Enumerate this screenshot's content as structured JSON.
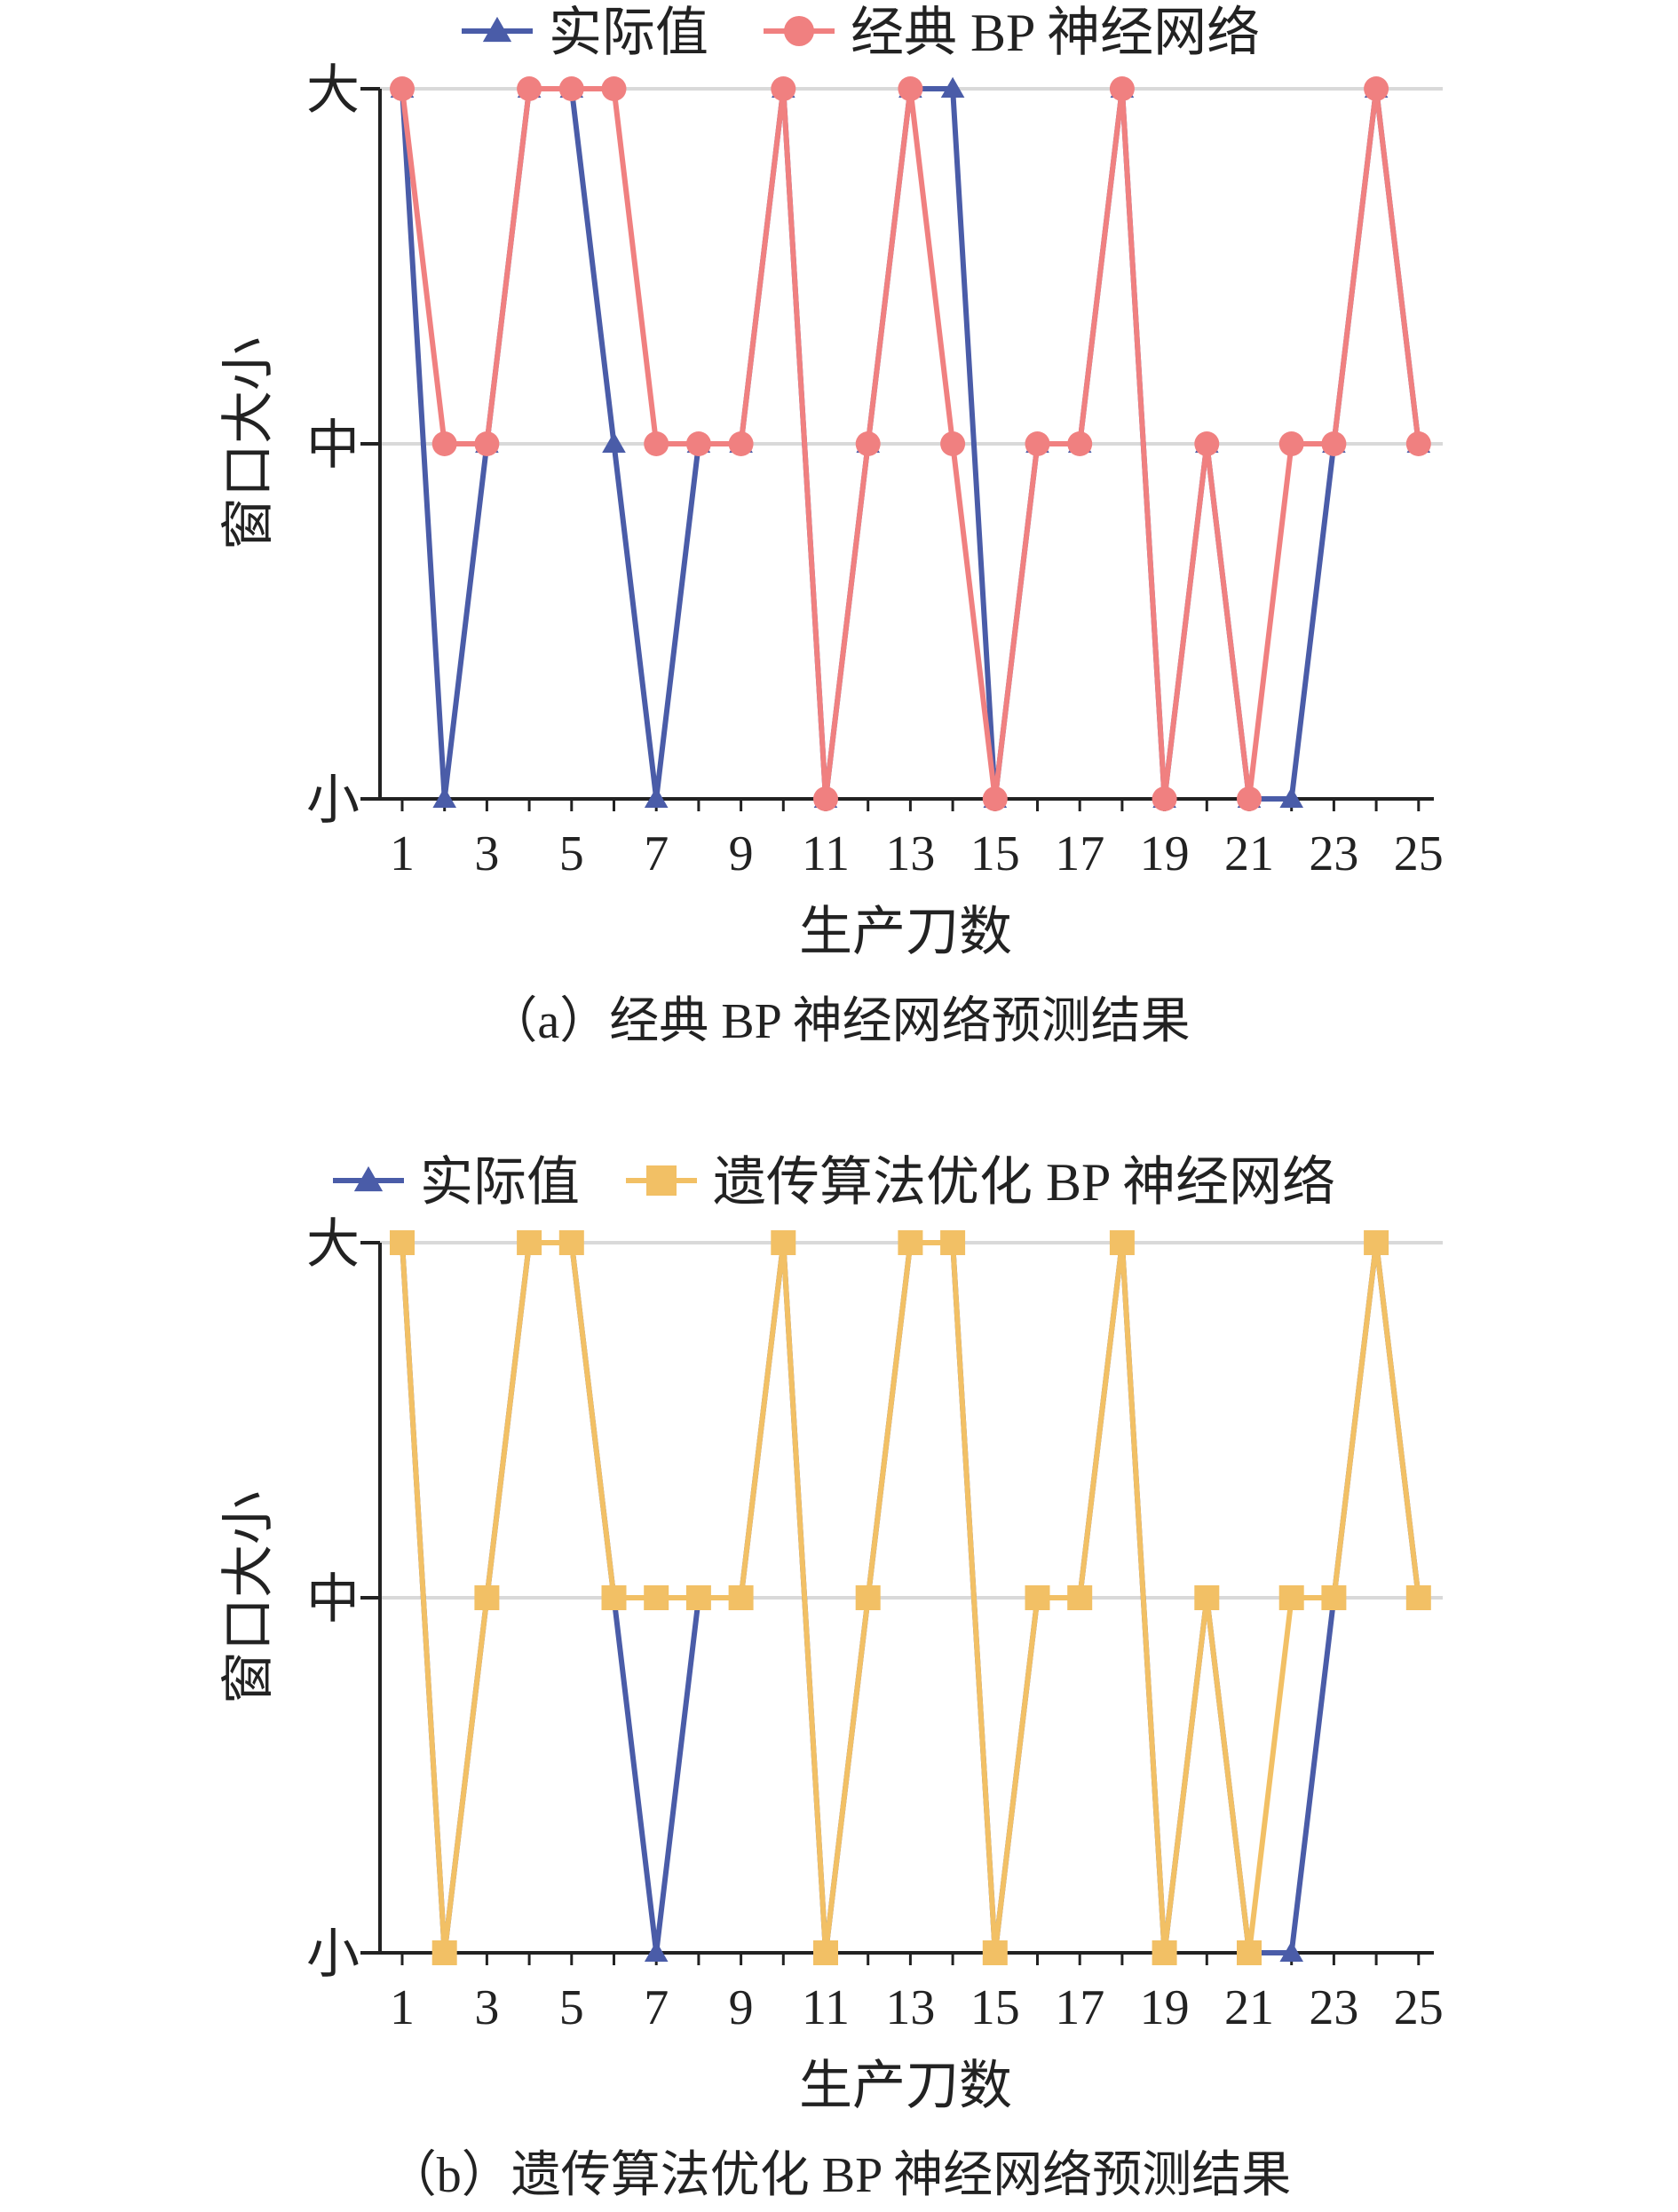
{
  "chart_data": [
    {
      "type": "line",
      "caption": "（a）经典 BP 神经网络预测结果",
      "xlabel": "生产刀数",
      "ylabel": "窗口大小",
      "y_categories": [
        "小",
        "中",
        "大"
      ],
      "x": [
        1,
        2,
        3,
        4,
        5,
        6,
        7,
        8,
        9,
        10,
        11,
        12,
        13,
        14,
        15,
        16,
        17,
        18,
        19,
        20,
        21,
        22,
        23,
        24,
        25
      ],
      "x_tick_labels": [
        "1",
        "3",
        "5",
        "7",
        "9",
        "11",
        "13",
        "15",
        "17",
        "19",
        "21",
        "23",
        "25"
      ],
      "grid": "horizontal",
      "legend_position": "top",
      "series": [
        {
          "name": "实际值",
          "marker": "triangle",
          "color": "#4a5ca8",
          "values": [
            "大",
            "小",
            "中",
            "大",
            "大",
            "中",
            "小",
            "中",
            "中",
            "大",
            "小",
            "中",
            "大",
            "大",
            "小",
            "中",
            "中",
            "大",
            "小",
            "中",
            "小",
            "小",
            "中",
            "大",
            "中"
          ]
        },
        {
          "name": "经典 BP 神经网络",
          "marker": "circle",
          "color": "#f08080",
          "values": [
            "大",
            "中",
            "中",
            "大",
            "大",
            "大",
            "中",
            "中",
            "中",
            "大",
            "小",
            "中",
            "大",
            "中",
            "小",
            "中",
            "中",
            "大",
            "小",
            "中",
            "小",
            "中",
            "中",
            "大",
            "中"
          ]
        }
      ]
    },
    {
      "type": "line",
      "caption": "（b）遗传算法优化 BP 神经网络预测结果",
      "xlabel": "生产刀数",
      "ylabel": "窗口大小",
      "y_categories": [
        "小",
        "中",
        "大"
      ],
      "x": [
        1,
        2,
        3,
        4,
        5,
        6,
        7,
        8,
        9,
        10,
        11,
        12,
        13,
        14,
        15,
        16,
        17,
        18,
        19,
        20,
        21,
        22,
        23,
        24,
        25
      ],
      "x_tick_labels": [
        "1",
        "3",
        "5",
        "7",
        "9",
        "11",
        "13",
        "15",
        "17",
        "19",
        "21",
        "23",
        "25"
      ],
      "grid": "horizontal",
      "legend_position": "top",
      "series": [
        {
          "name": "实际值",
          "marker": "triangle",
          "color": "#4a5ca8",
          "values": [
            "大",
            "小",
            "中",
            "大",
            "大",
            "中",
            "小",
            "中",
            "中",
            "大",
            "小",
            "中",
            "大",
            "大",
            "小",
            "中",
            "中",
            "大",
            "小",
            "中",
            "小",
            "小",
            "中",
            "大",
            "中"
          ]
        },
        {
          "name": "遗传算法优化 BP 神经网络",
          "marker": "square",
          "color": "#f2c065",
          "values": [
            "大",
            "小",
            "中",
            "大",
            "大",
            "中",
            "中",
            "中",
            "中",
            "大",
            "小",
            "中",
            "大",
            "大",
            "小",
            "中",
            "中",
            "大",
            "小",
            "中",
            "小",
            "中",
            "中",
            "大",
            "中"
          ]
        }
      ]
    }
  ]
}
